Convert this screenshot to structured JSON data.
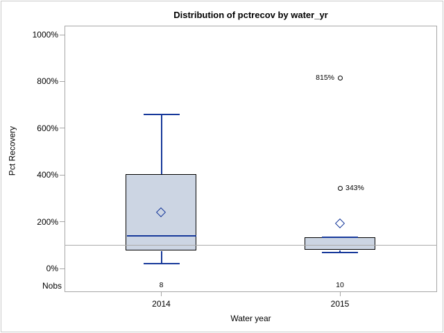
{
  "title": "Distribution of pctrecov by water_yr",
  "y_axis": {
    "title": "Pct Recovery",
    "tick_labels": [
      "0%",
      "200%",
      "400%",
      "600%",
      "800%",
      "1000%"
    ],
    "tick_values": [
      0,
      200,
      400,
      600,
      800,
      1000
    ]
  },
  "x_axis": {
    "title": "Water year",
    "categories": [
      "2014",
      "2015"
    ]
  },
  "nobs": {
    "label": "Nobs",
    "values": [
      "8",
      "10"
    ]
  },
  "colors": {
    "box_fill": "#ccd5e3",
    "box_border": "#000000",
    "blue": "#16389a",
    "axis": "#a6a6a6",
    "ref_line": "#ababab",
    "outlier": "#000000",
    "text": "#000000"
  },
  "chart_data": {
    "type": "boxplot",
    "title": "Distribution of pctrecov by water_yr",
    "xlabel": "Water year",
    "ylabel": "Pct Recovery",
    "ylim": [
      0,
      1040
    ],
    "grid": false,
    "legend": "none",
    "reference_line": 100,
    "categories": [
      "2014",
      "2015"
    ],
    "series": [
      {
        "category": "2014",
        "n": 8,
        "whisker_low": 20,
        "q1": 75,
        "median": 140,
        "q3": 405,
        "whisker_high": 660,
        "mean": 240,
        "outliers": []
      },
      {
        "category": "2015",
        "n": 10,
        "whisker_low": 67,
        "q1": 78,
        "median": 135,
        "q3": 135,
        "whisker_high": 135,
        "mean": 190,
        "outliers": [
          {
            "value": 343,
            "label": "343%",
            "label_side": "right"
          },
          {
            "value": 815,
            "label": "815%",
            "label_side": "left"
          }
        ]
      }
    ]
  }
}
